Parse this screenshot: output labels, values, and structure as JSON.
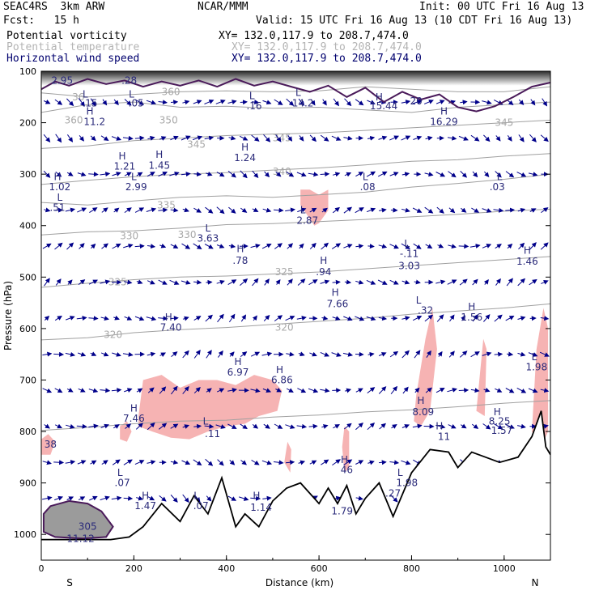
{
  "header": {
    "model": "SEAC4RS  3km ARW",
    "org": "NCAR/MMM",
    "init": "Init: 00 UTC Fri 16 Aug 13",
    "fcst": "Fcst:   15 h",
    "valid": "Valid: 15 UTC Fri 16 Aug 13 (10 CDT Fri 16 Aug 13)"
  },
  "legend": [
    {
      "label": "Potential vorticity",
      "xy": "XY= 132.0,117.9 to 208.7,474.0",
      "color": "#000000"
    },
    {
      "label": "Potential temperature",
      "xy": "XY= 132.0,117.9 to 208.7,474.0",
      "color": "#b4b4b4"
    },
    {
      "label": "Horizontal wind speed",
      "xy": "XY= 132.0,117.9 to 208.7,474.0",
      "color": "#00006e"
    }
  ],
  "chart_data": {
    "type": "cross-section",
    "xlabel": "Distance (km)",
    "ylabel": "Pressure (hPa)",
    "xlim": [
      0,
      1100
    ],
    "ylim": [
      1050,
      100
    ],
    "xticks": [
      "0",
      "200",
      "400",
      "600",
      "800",
      "1000"
    ],
    "yticks": [
      "100",
      "200",
      "300",
      "400",
      "500",
      "600",
      "700",
      "800",
      "900",
      "1000"
    ],
    "x_end_labels": {
      "left": "S",
      "right": "N"
    },
    "theta_isolines": [
      {
        "label": "360",
        "points": [
          [
            0,
            142
          ],
          [
            100,
            150
          ],
          [
            200,
            145
          ],
          [
            300,
            140
          ],
          [
            400,
            138
          ],
          [
            500,
            140
          ],
          [
            600,
            138
          ],
          [
            700,
            130
          ],
          [
            800,
            135
          ],
          [
            900,
            140
          ],
          [
            1000,
            140
          ],
          [
            1100,
            130
          ]
        ]
      },
      {
        "label": "350",
        "points": [
          [
            0,
            180
          ],
          [
            100,
            165
          ],
          [
            200,
            160
          ],
          [
            300,
            170
          ],
          [
            400,
            168
          ],
          [
            500,
            172
          ],
          [
            600,
            170
          ],
          [
            700,
            175
          ],
          [
            800,
            180
          ],
          [
            900,
            170
          ],
          [
            1000,
            165
          ],
          [
            1100,
            160
          ]
        ]
      },
      {
        "label": "345",
        "points": [
          [
            0,
            250
          ],
          [
            100,
            245
          ],
          [
            200,
            235
          ],
          [
            300,
            230
          ],
          [
            400,
            225
          ],
          [
            500,
            222
          ],
          [
            600,
            220
          ],
          [
            700,
            215
          ],
          [
            800,
            210
          ],
          [
            900,
            205
          ],
          [
            1000,
            200
          ],
          [
            1100,
            195
          ]
        ]
      },
      {
        "label": "340",
        "points": [
          [
            0,
            320
          ],
          [
            100,
            312
          ],
          [
            200,
            305
          ],
          [
            300,
            300
          ],
          [
            400,
            297
          ],
          [
            500,
            292
          ],
          [
            600,
            288
          ],
          [
            700,
            282
          ],
          [
            800,
            275
          ],
          [
            900,
            272
          ],
          [
            1000,
            265
          ],
          [
            1100,
            260
          ]
        ]
      },
      {
        "label": "335",
        "points": [
          [
            0,
            355
          ],
          [
            100,
            360
          ],
          [
            200,
            352
          ],
          [
            300,
            345
          ],
          [
            400,
            342
          ],
          [
            500,
            345
          ],
          [
            600,
            340
          ],
          [
            700,
            335
          ],
          [
            800,
            325
          ],
          [
            900,
            318
          ],
          [
            1000,
            310
          ],
          [
            1100,
            300
          ]
        ]
      },
      {
        "label": "330",
        "points": [
          [
            0,
            418
          ],
          [
            100,
            412
          ],
          [
            200,
            410
          ],
          [
            300,
            405
          ],
          [
            400,
            398
          ],
          [
            500,
            396
          ],
          [
            600,
            392
          ],
          [
            700,
            388
          ],
          [
            800,
            383
          ],
          [
            900,
            378
          ],
          [
            1000,
            372
          ],
          [
            1100,
            368
          ]
        ]
      },
      {
        "label": "325",
        "points": [
          [
            0,
            520
          ],
          [
            100,
            512
          ],
          [
            200,
            505
          ],
          [
            300,
            500
          ],
          [
            400,
            498
          ],
          [
            500,
            494
          ],
          [
            600,
            490
          ],
          [
            700,
            484
          ],
          [
            800,
            478
          ],
          [
            900,
            472
          ],
          [
            1000,
            466
          ],
          [
            1100,
            460
          ]
        ]
      },
      {
        "label": "320",
        "points": [
          [
            0,
            622
          ],
          [
            100,
            618
          ],
          [
            200,
            608
          ],
          [
            300,
            602
          ],
          [
            400,
            598
          ],
          [
            500,
            592
          ],
          [
            600,
            586
          ],
          [
            700,
            580
          ],
          [
            800,
            572
          ],
          [
            900,
            566
          ],
          [
            1000,
            560
          ],
          [
            1100,
            552
          ]
        ]
      },
      {
        "label": "",
        "points": [
          [
            0,
            798
          ],
          [
            100,
            792
          ],
          [
            200,
            785
          ],
          [
            300,
            780
          ],
          [
            400,
            778
          ],
          [
            500,
            772
          ],
          [
            600,
            768
          ],
          [
            700,
            762
          ],
          [
            800,
            758
          ],
          [
            900,
            752
          ],
          [
            1000,
            745
          ],
          [
            1100,
            740
          ]
        ]
      }
    ],
    "terrain": [
      [
        0,
        1010
      ],
      [
        150,
        1010
      ],
      [
        190,
        1005
      ],
      [
        220,
        985
      ],
      [
        260,
        940
      ],
      [
        300,
        975
      ],
      [
        330,
        925
      ],
      [
        360,
        960
      ],
      [
        390,
        890
      ],
      [
        420,
        985
      ],
      [
        440,
        960
      ],
      [
        470,
        985
      ],
      [
        500,
        935
      ],
      [
        530,
        910
      ],
      [
        560,
        900
      ],
      [
        600,
        940
      ],
      [
        620,
        910
      ],
      [
        640,
        940
      ],
      [
        660,
        905
      ],
      [
        680,
        960
      ],
      [
        700,
        930
      ],
      [
        730,
        900
      ],
      [
        760,
        965
      ],
      [
        800,
        880
      ],
      [
        840,
        835
      ],
      [
        880,
        840
      ],
      [
        900,
        870
      ],
      [
        930,
        840
      ],
      [
        960,
        850
      ],
      [
        990,
        860
      ],
      [
        1030,
        850
      ],
      [
        1060,
        810
      ],
      [
        1080,
        760
      ],
      [
        1090,
        830
      ],
      [
        1100,
        845
      ]
    ],
    "pv_contour_top": [
      [
        0,
        135
      ],
      [
        30,
        120
      ],
      [
        60,
        128
      ],
      [
        100,
        115
      ],
      [
        140,
        125
      ],
      [
        180,
        118
      ],
      [
        220,
        130
      ],
      [
        260,
        120
      ],
      [
        300,
        128
      ],
      [
        340,
        118
      ],
      [
        380,
        130
      ],
      [
        420,
        115
      ],
      [
        460,
        128
      ],
      [
        500,
        120
      ],
      [
        540,
        130
      ],
      [
        580,
        140
      ],
      [
        620,
        128
      ],
      [
        660,
        150
      ],
      [
        700,
        132
      ],
      [
        740,
        160
      ],
      [
        780,
        140
      ],
      [
        820,
        155
      ],
      [
        860,
        145
      ],
      [
        900,
        170
      ],
      [
        940,
        178
      ],
      [
        980,
        168
      ],
      [
        1020,
        150
      ],
      [
        1060,
        130
      ],
      [
        1100,
        122
      ]
    ],
    "pv_contour_bottom": [
      [
        5,
        960
      ],
      [
        20,
        945
      ],
      [
        60,
        935
      ],
      [
        100,
        940
      ],
      [
        130,
        955
      ],
      [
        155,
        985
      ],
      [
        140,
        1005
      ],
      [
        90,
        1008
      ],
      [
        30,
        1005
      ],
      [
        5,
        995
      ]
    ],
    "wind_grid": {
      "x_step": 25,
      "p_levels": [
        160,
        230,
        300,
        370,
        440,
        510,
        580,
        650,
        720,
        790,
        860,
        930
      ]
    },
    "vorticity_labels": [
      {
        "t": "2.95",
        "x": 45,
        "p": 118
      },
      {
        "t": ".28",
        "x": 190,
        "p": 118
      },
      {
        "t": ".15",
        "x": 105,
        "p": 162
      },
      {
        "t": "L",
        "x": 95,
        "p": 145
      },
      {
        "t": "11.2",
        "x": 115,
        "p": 198
      },
      {
        "t": "H",
        "x": 105,
        "p": 178
      },
      {
        "t": ".05",
        "x": 205,
        "p": 162
      },
      {
        "t": "L",
        "x": 195,
        "p": 145
      },
      {
        "t": ".16",
        "x": 460,
        "p": 168
      },
      {
        "t": "L",
        "x": 455,
        "p": 148
      },
      {
        "t": "14.2",
        "x": 565,
        "p": 162
      },
      {
        "t": "L",
        "x": 555,
        "p": 142
      },
      {
        "t": "15.44",
        "x": 740,
        "p": 168
      },
      {
        "t": "H",
        "x": 730,
        "p": 150
      },
      {
        "t": "20",
        "x": 810,
        "p": 158
      },
      {
        "t": "16.29",
        "x": 870,
        "p": 198
      },
      {
        "t": "H",
        "x": 870,
        "p": 178
      },
      {
        "t": "H",
        "x": 175,
        "p": 265
      },
      {
        "t": "1.21",
        "x": 180,
        "p": 285
      },
      {
        "t": "H",
        "x": 255,
        "p": 262
      },
      {
        "t": "1.45",
        "x": 255,
        "p": 283
      },
      {
        "t": "1.24",
        "x": 440,
        "p": 268
      },
      {
        "t": "H",
        "x": 440,
        "p": 248
      },
      {
        "t": "H",
        "x": 35,
        "p": 305
      },
      {
        "t": "1.02",
        "x": 40,
        "p": 325
      },
      {
        "t": "L",
        "x": 40,
        "p": 345
      },
      {
        "t": ".51",
        "x": 35,
        "p": 365
      },
      {
        "t": "L",
        "x": 200,
        "p": 305
      },
      {
        "t": "2.99",
        "x": 205,
        "p": 325
      },
      {
        "t": "L",
        "x": 700,
        "p": 305
      },
      {
        "t": ".08",
        "x": 705,
        "p": 325
      },
      {
        "t": "L",
        "x": 990,
        "p": 305
      },
      {
        "t": ".03",
        "x": 985,
        "p": 325
      },
      {
        "t": "L",
        "x": 565,
        "p": 370
      },
      {
        "t": "2.87",
        "x": 575,
        "p": 390
      },
      {
        "t": "3.63",
        "x": 360,
        "p": 425
      },
      {
        "t": "L",
        "x": 360,
        "p": 405
      },
      {
        "t": "H",
        "x": 430,
        "p": 445
      },
      {
        "t": ".78",
        "x": 430,
        "p": 468
      },
      {
        "t": "L",
        "x": 790,
        "p": 435
      },
      {
        "t": "-.11",
        "x": 795,
        "p": 455
      },
      {
        "t": "3.03",
        "x": 795,
        "p": 478
      },
      {
        "t": "H",
        "x": 610,
        "p": 468
      },
      {
        "t": ".94",
        "x": 610,
        "p": 490
      },
      {
        "t": "H",
        "x": 1050,
        "p": 448
      },
      {
        "t": "1.46",
        "x": 1050,
        "p": 470
      },
      {
        "t": "H",
        "x": 635,
        "p": 530
      },
      {
        "t": "7.66",
        "x": 640,
        "p": 552
      },
      {
        "t": "L",
        "x": 815,
        "p": 545
      },
      {
        "t": ".32",
        "x": 830,
        "p": 565
      },
      {
        "t": "H",
        "x": 930,
        "p": 558
      },
      {
        "t": "1.56",
        "x": 930,
        "p": 578
      },
      {
        "t": "H",
        "x": 275,
        "p": 578
      },
      {
        "t": "7.40",
        "x": 280,
        "p": 598
      },
      {
        "t": "H",
        "x": 425,
        "p": 665
      },
      {
        "t": "6.97",
        "x": 425,
        "p": 685
      },
      {
        "t": "H",
        "x": 515,
        "p": 680
      },
      {
        "t": "6.86",
        "x": 520,
        "p": 700
      },
      {
        "t": "L",
        "x": 1065,
        "p": 655
      },
      {
        "t": "1.98",
        "x": 1070,
        "p": 675
      },
      {
        "t": "H",
        "x": 200,
        "p": 755
      },
      {
        "t": "7.46",
        "x": 200,
        "p": 775
      },
      {
        "t": "H",
        "x": 820,
        "p": 740
      },
      {
        "t": "8.09",
        "x": 825,
        "p": 762
      },
      {
        "t": "L",
        "x": 355,
        "p": 780
      },
      {
        "t": ".11",
        "x": 370,
        "p": 805
      },
      {
        "t": "H",
        "x": 860,
        "p": 790
      },
      {
        "t": "11",
        "x": 870,
        "p": 810
      },
      {
        "t": "H",
        "x": 985,
        "p": 762
      },
      {
        "t": "8.25",
        "x": 990,
        "p": 780
      },
      {
        "t": "1.57",
        "x": 995,
        "p": 798
      },
      {
        "t": "38",
        "x": 20,
        "p": 825
      },
      {
        "t": "L",
        "x": 170,
        "p": 880
      },
      {
        "t": ".07",
        "x": 175,
        "p": 900
      },
      {
        "t": "H",
        "x": 225,
        "p": 925
      },
      {
        "t": "1.47",
        "x": 225,
        "p": 945
      },
      {
        "t": "L",
        "x": 335,
        "p": 925
      },
      {
        "t": ".07",
        "x": 345,
        "p": 945
      },
      {
        "t": "H",
        "x": 465,
        "p": 925
      },
      {
        "t": "1.14",
        "x": 475,
        "p": 948
      },
      {
        "t": "H",
        "x": 655,
        "p": 855
      },
      {
        "t": "46",
        "x": 660,
        "p": 875
      },
      {
        "t": "1.79",
        "x": 650,
        "p": 955
      },
      {
        "t": "L",
        "x": 775,
        "p": 880
      },
      {
        "t": "1.98",
        "x": 790,
        "p": 900
      },
      {
        "t": ".27",
        "x": 760,
        "p": 920
      },
      {
        "t": "305",
        "x": 100,
        "p": 985
      },
      {
        "t": "11.12",
        "x": 85,
        "p": 1008
      }
    ],
    "theta_labels": [
      {
        "t": "36",
        "x": 80,
        "p": 150
      },
      {
        "t": "360",
        "x": 280,
        "p": 140
      },
      {
        "t": "360",
        "x": 70,
        "p": 195
      },
      {
        "t": "350",
        "x": 275,
        "p": 195
      },
      {
        "t": "345",
        "x": 335,
        "p": 242
      },
      {
        "t": "345",
        "x": 520,
        "p": 230
      },
      {
        "t": "345",
        "x": 1000,
        "p": 200
      },
      {
        "t": "340",
        "x": 520,
        "p": 295
      },
      {
        "t": "335",
        "x": 270,
        "p": 360
      },
      {
        "t": "330",
        "x": 190,
        "p": 420
      },
      {
        "t": "330",
        "x": 315,
        "p": 418
      },
      {
        "t": "325",
        "x": 165,
        "p": 510
      },
      {
        "t": "325",
        "x": 525,
        "p": 490
      },
      {
        "t": "320",
        "x": 155,
        "p": 612
      },
      {
        "t": "320",
        "x": 525,
        "p": 598
      }
    ]
  }
}
